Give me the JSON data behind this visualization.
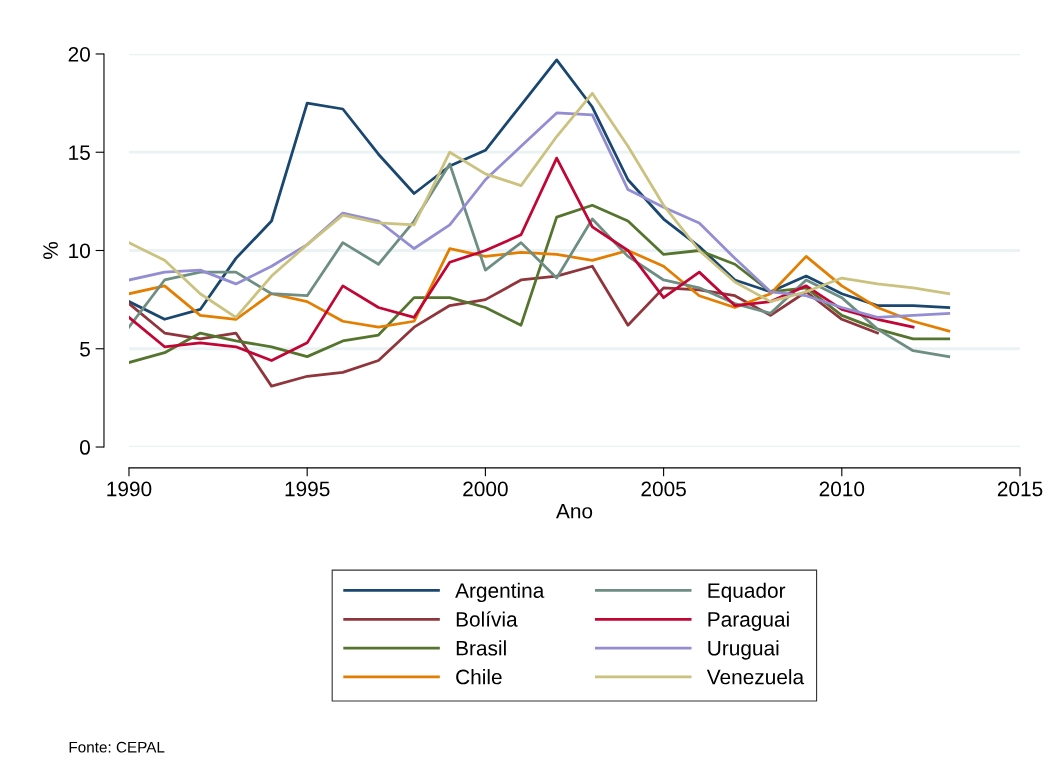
{
  "chart_data": {
    "type": "line",
    "xlabel": "Ano",
    "ylabel": "%",
    "x": [
      1990,
      1991,
      1992,
      1993,
      1994,
      1995,
      1996,
      1997,
      1998,
      1999,
      2000,
      2001,
      2002,
      2003,
      2004,
      2005,
      2006,
      2007,
      2008,
      2009,
      2010,
      2011,
      2012,
      2013
    ],
    "series": [
      {
        "name": "Argentina",
        "color": "#1a476f",
        "values": [
          7.4,
          6.5,
          7.0,
          9.6,
          11.5,
          17.5,
          17.2,
          14.9,
          12.9,
          14.3,
          15.1,
          17.4,
          19.7,
          17.3,
          13.6,
          11.6,
          10.2,
          8.5,
          7.9,
          8.7,
          7.8,
          7.2,
          7.2,
          7.1
        ]
      },
      {
        "name": "Bolívia",
        "color": "#90353b",
        "values": [
          7.3,
          5.8,
          5.5,
          5.8,
          3.1,
          3.6,
          3.8,
          4.4,
          6.1,
          7.2,
          7.5,
          8.5,
          8.7,
          9.2,
          6.2,
          8.1,
          8.0,
          7.7,
          6.7,
          7.9,
          6.5,
          5.8,
          null,
          null
        ]
      },
      {
        "name": "Brasil",
        "color": "#55752f",
        "values": [
          4.3,
          4.8,
          5.8,
          5.4,
          5.1,
          4.6,
          5.4,
          5.7,
          7.6,
          7.6,
          7.1,
          6.2,
          11.7,
          12.3,
          11.5,
          9.8,
          10.0,
          9.3,
          7.9,
          8.1,
          6.7,
          6.0,
          5.5,
          5.5
        ]
      },
      {
        "name": "Chile",
        "color": "#e37e00",
        "values": [
          7.8,
          8.2,
          6.7,
          6.5,
          7.8,
          7.4,
          6.4,
          6.1,
          6.4,
          10.1,
          9.7,
          9.9,
          9.8,
          9.5,
          10.0,
          9.2,
          7.7,
          7.1,
          7.8,
          9.7,
          8.2,
          7.1,
          6.4,
          5.9
        ]
      },
      {
        "name": "Equador",
        "color": "#6e8e84",
        "values": [
          6.1,
          8.5,
          8.9,
          8.9,
          7.8,
          7.7,
          10.4,
          9.3,
          11.5,
          14.4,
          9.0,
          10.4,
          8.6,
          11.6,
          9.7,
          8.5,
          8.1,
          7.3,
          6.8,
          8.5,
          7.6,
          6.0,
          4.9,
          4.6
        ]
      },
      {
        "name": "Paraguai",
        "color": "#c10534",
        "values": [
          6.6,
          5.1,
          5.3,
          5.1,
          4.4,
          5.3,
          8.2,
          7.1,
          6.6,
          9.4,
          10.0,
          10.8,
          14.7,
          11.2,
          10.0,
          7.6,
          8.9,
          7.2,
          7.4,
          8.2,
          7.0,
          6.5,
          6.1,
          null
        ]
      },
      {
        "name": "Uruguai",
        "color": "#938dd2",
        "values": [
          8.5,
          8.9,
          9.0,
          8.3,
          9.2,
          10.3,
          11.9,
          11.5,
          10.1,
          11.3,
          13.6,
          15.3,
          17.0,
          16.9,
          13.1,
          12.2,
          11.4,
          9.6,
          7.9,
          7.7,
          7.1,
          6.6,
          6.7,
          6.8
        ]
      },
      {
        "name": "Venezuela",
        "color": "#cac27e",
        "values": [
          10.4,
          9.5,
          7.8,
          6.6,
          8.7,
          10.3,
          11.8,
          11.4,
          11.3,
          15.0,
          13.9,
          13.3,
          15.8,
          18.0,
          15.3,
          12.3,
          10.0,
          8.4,
          7.4,
          7.9,
          8.6,
          8.3,
          8.1,
          7.8
        ]
      }
    ],
    "xlim": [
      1990,
      2015
    ],
    "xticks": [
      1990,
      1995,
      2000,
      2005,
      2010,
      2015
    ],
    "ylim": [
      0,
      20
    ],
    "yticks": [
      0,
      5,
      10,
      15,
      20
    ],
    "grid": "y",
    "legend": "bottom",
    "marker": "none",
    "line_style": "solid",
    "annotations": [
      "Fonte: CEPAL"
    ]
  }
}
